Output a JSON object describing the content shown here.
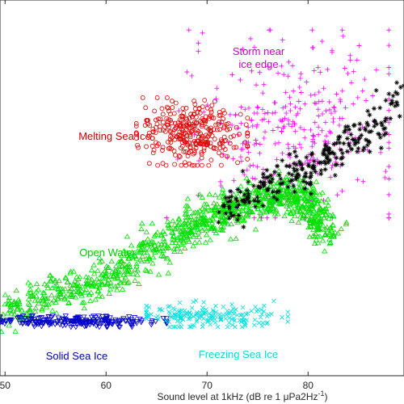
{
  "chart_data": {
    "type": "scatter",
    "title": "",
    "xlabel": "Sound level at 1kHz (dB re 1 μPa2Hz",
    "xlabel_sup": "-1",
    "xlabel_close": ")",
    "ylabel": "",
    "xlim": [
      49.5,
      89.5
    ],
    "ylim": [
      0,
      1
    ],
    "x_ticks": [
      50,
      60,
      70,
      80
    ],
    "x_tick_labels": [
      "50",
      "60",
      "70",
      "80"
    ],
    "y_ticks_shown": false,
    "grid": false,
    "legend": "none",
    "series": [
      {
        "name": "Storm near ice edge",
        "label_lines": [
          "Storm near",
          "ice edge"
        ],
        "marker": "+",
        "color": "#ff00ff",
        "label_color": "#cc00cc",
        "extent": {
          "x": [
            66,
            88
          ],
          "y": [
            0.42,
            0.92
          ]
        },
        "centroid": [
          79,
          0.66
        ]
      },
      {
        "name": "Melting Sea Ice",
        "label_lines": [
          "Melting Sea Ice"
        ],
        "marker": "o",
        "color": "#e00000",
        "label_color": "#cc0000",
        "extent": {
          "x": [
            63,
            74
          ],
          "y": [
            0.56,
            0.74
          ]
        },
        "centroid": [
          68.5,
          0.645
        ]
      },
      {
        "name": "Open Water",
        "label_lines": [
          "Open Water"
        ],
        "marker": "triangle-up",
        "color": "#00e000",
        "label_color": "#00cc00",
        "trend": [
          [
            49.5,
            0.17
          ],
          [
            60,
            0.26
          ],
          [
            68,
            0.39
          ],
          [
            74,
            0.46
          ],
          [
            79,
            0.49
          ],
          [
            82,
            0.38
          ]
        ],
        "extent": {
          "x": [
            49.5,
            82
          ],
          "y": [
            0.14,
            0.55
          ]
        },
        "centroid": [
          70,
          0.4
        ]
      },
      {
        "name": "",
        "label_lines": [],
        "marker": "*",
        "color": "#000000",
        "label_color": "#000000",
        "trend": [
          [
            71,
            0.43
          ],
          [
            75,
            0.49
          ],
          [
            79,
            0.54
          ],
          [
            83,
            0.6
          ],
          [
            86,
            0.64
          ],
          [
            89.5,
            0.76
          ]
        ],
        "extent": {
          "x": [
            71,
            89.5
          ],
          "y": [
            0.4,
            0.8
          ]
        },
        "centroid": [
          80,
          0.58
        ]
      },
      {
        "name": "Solid Sea Ice",
        "label_lines": [
          "Solid Sea Ice"
        ],
        "marker": "triangle-down",
        "color": "#0000cc",
        "label_color": "#0000aa",
        "extent": {
          "x": [
            49.5,
            66
          ],
          "y": [
            0.13,
            0.16
          ]
        },
        "centroid": [
          57,
          0.145
        ]
      },
      {
        "name": "Freezing Sea Ice",
        "label_lines": [
          "Freezing Sea Ice"
        ],
        "marker": "x",
        "color": "#00e0e0",
        "label_color": "#00dddd",
        "extent": {
          "x": [
            64,
            78
          ],
          "y": [
            0.13,
            0.2
          ]
        },
        "centroid": [
          70,
          0.16
        ]
      }
    ]
  }
}
